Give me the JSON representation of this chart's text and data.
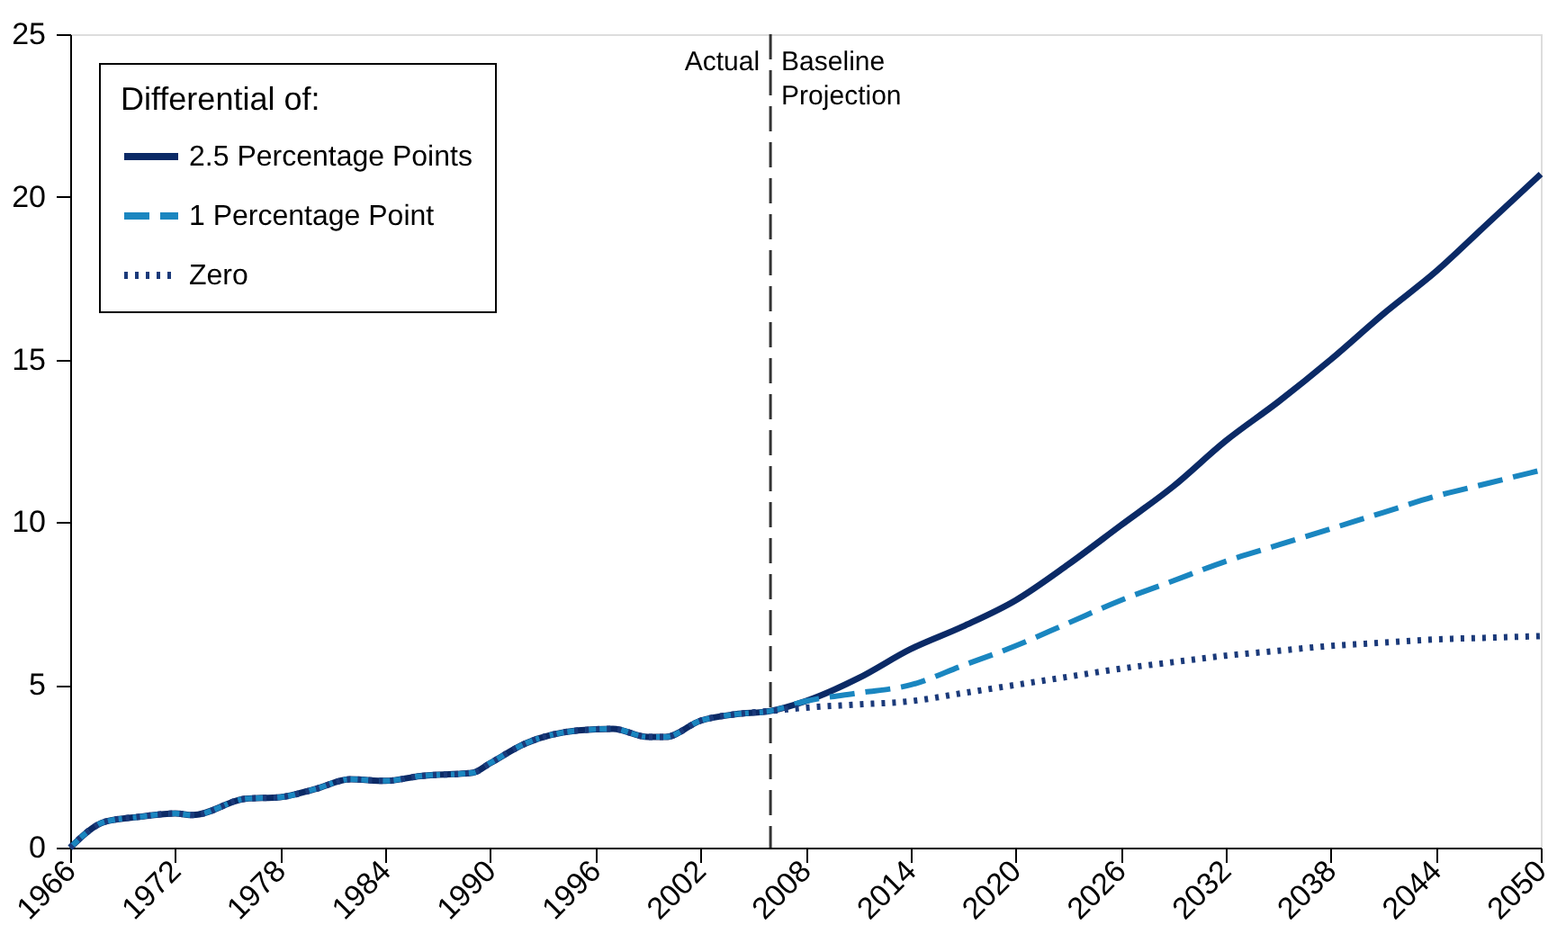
{
  "chart_data": {
    "type": "line",
    "x": [
      1966,
      1968,
      1970,
      1972,
      1973,
      1976,
      1978,
      1980,
      1982,
      1984,
      1986,
      1989,
      1990,
      1992,
      1995,
      1997,
      1999,
      2000,
      2002,
      2004,
      2006,
      2008,
      2011,
      2014,
      2017,
      2020,
      2023,
      2026,
      2029,
      2032,
      2035,
      2038,
      2041,
      2044,
      2047,
      2050
    ],
    "series": [
      {
        "name": "2.5 Percentage Points",
        "color": "#0b2a66",
        "line_style": "solid",
        "values": [
          0,
          0.8,
          0.95,
          1.05,
          1.0,
          1.5,
          1.55,
          1.8,
          2.1,
          2.05,
          2.2,
          2.3,
          2.6,
          3.2,
          3.6,
          3.65,
          3.4,
          3.4,
          3.9,
          4.1,
          4.2,
          4.5,
          5.2,
          6.1,
          6.8,
          7.6,
          8.7,
          9.9,
          11.1,
          12.5,
          13.7,
          15.0,
          16.4,
          17.7,
          19.2,
          20.7
        ]
      },
      {
        "name": "1 Percentage Point",
        "color": "#1a86c0",
        "line_style": "dashed",
        "values": [
          0,
          0.8,
          0.95,
          1.05,
          1.0,
          1.5,
          1.55,
          1.8,
          2.1,
          2.05,
          2.2,
          2.3,
          2.6,
          3.2,
          3.6,
          3.65,
          3.4,
          3.4,
          3.9,
          4.1,
          4.2,
          4.5,
          4.75,
          5.0,
          5.6,
          6.2,
          6.9,
          7.6,
          8.2,
          8.8,
          9.3,
          9.8,
          10.3,
          10.8,
          11.2,
          11.6
        ]
      },
      {
        "name": "Zero",
        "color": "#1b3a7a",
        "line_style": "dotted",
        "values": [
          0,
          0.8,
          0.95,
          1.05,
          1.0,
          1.5,
          1.55,
          1.8,
          2.1,
          2.05,
          2.2,
          2.3,
          2.6,
          3.2,
          3.6,
          3.65,
          3.4,
          3.4,
          3.9,
          4.1,
          4.2,
          4.3,
          4.4,
          4.5,
          4.75,
          5.0,
          5.25,
          5.5,
          5.7,
          5.9,
          6.05,
          6.2,
          6.3,
          6.4,
          6.45,
          6.5
        ]
      }
    ],
    "legend_title": "Differential of:",
    "legend": "top left",
    "xlim": [
      1966,
      2050
    ],
    "xticks": [
      1966,
      1972,
      1978,
      1984,
      1990,
      1996,
      2002,
      2008,
      2014,
      2020,
      2026,
      2032,
      2038,
      2044,
      2050
    ],
    "ylim": [
      0,
      25
    ],
    "yticks": [
      0,
      5,
      10,
      15,
      20,
      25
    ],
    "grid": false,
    "ref_lines": [
      {
        "axis": "x",
        "value": 2006,
        "color": "#333333",
        "line_style": "dashed"
      }
    ],
    "annotations": [
      "Actual",
      "Baseline Projection"
    ]
  }
}
